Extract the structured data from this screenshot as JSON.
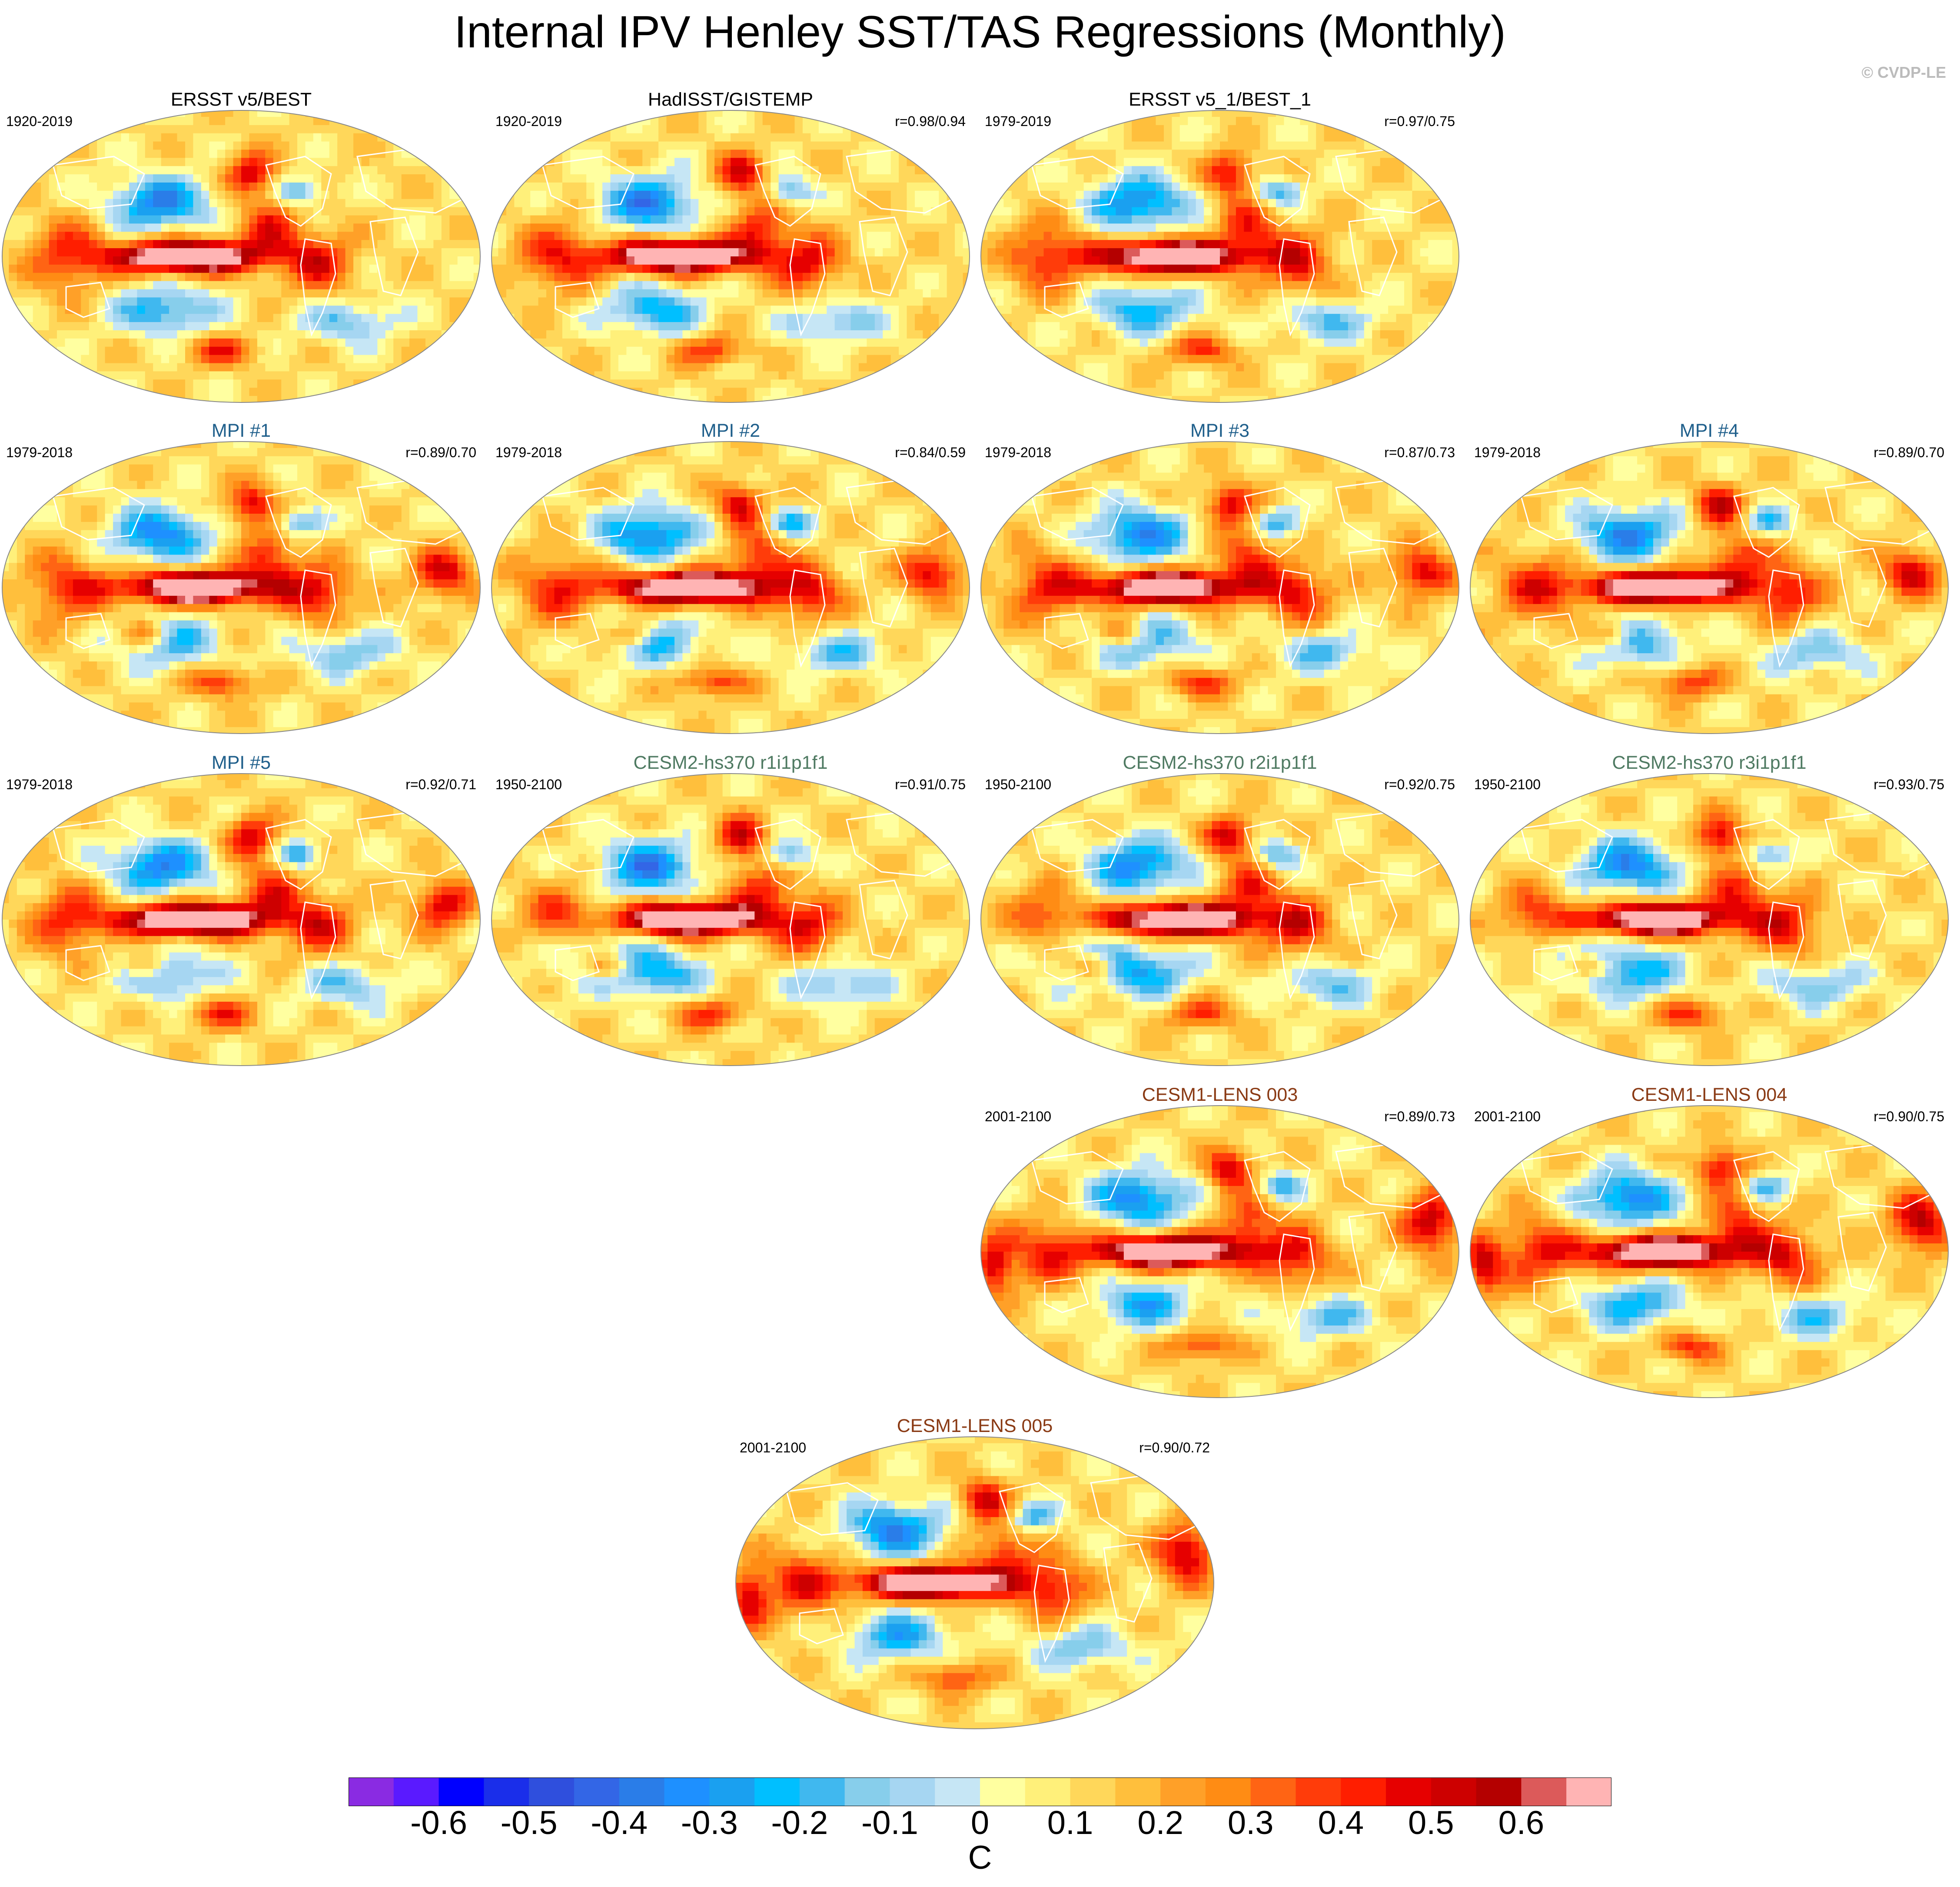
{
  "title": "Internal IPV Henley SST/TAS Regressions (Monthly)",
  "credit": "© CVDP-LE",
  "colors": {
    "obs_title": "#000000",
    "mpi_title": "#1f5f8b",
    "cesm2_title": "#4f7a62",
    "cesm1_title": "#8a3a14",
    "coast": "#ffffff",
    "land_outline": "#888888"
  },
  "chart_data": {
    "type": "heatmap",
    "projection": "Robinson global map panels",
    "variable": "SST/TAS regression",
    "units": "C",
    "colorbar": {
      "labels": [
        "-0.6",
        "-0.5",
        "-0.4",
        "-0.3",
        "-0.2",
        "-0.1",
        "0",
        "0.1",
        "0.2",
        "0.3",
        "0.4",
        "0.5",
        "0.6"
      ],
      "levels": [
        -0.65,
        -0.6,
        -0.55,
        -0.5,
        -0.45,
        -0.4,
        -0.35,
        -0.3,
        -0.25,
        -0.2,
        -0.15,
        -0.1,
        -0.05,
        0,
        0.05,
        0.1,
        0.15,
        0.2,
        0.25,
        0.3,
        0.35,
        0.4,
        0.45,
        0.5,
        0.55,
        0.6,
        0.65
      ],
      "colors": [
        "#8a2be2",
        "#5a1aff",
        "#0000ff",
        "#1a2eea",
        "#2f4fdd",
        "#3366e6",
        "#2a7de8",
        "#1e90ff",
        "#1aa0f0",
        "#00bfff",
        "#40b8ef",
        "#87ceeb",
        "#a6d6f2",
        "#c6e6f5",
        "#ffffa0",
        "#fff07a",
        "#ffd75a",
        "#ffbf3c",
        "#ffa028",
        "#ff8c14",
        "#ff6414",
        "#ff3c0a",
        "#ff1e00",
        "#e60000",
        "#cd0000",
        "#b40000",
        "#dc5a5a",
        "#ffb4b4"
      ]
    },
    "panels": [
      {
        "key": "p1",
        "title": "ERSST v5/BEST",
        "years": "1920-2019",
        "corr": "",
        "group": "obs"
      },
      {
        "key": "p2",
        "title": "HadISST/GISTEMP",
        "years": "1920-2019",
        "corr": "r=0.98/0.94",
        "group": "obs"
      },
      {
        "key": "p3",
        "title": "ERSST v5_1/BEST_1",
        "years": "1979-2019",
        "corr": "r=0.97/0.75",
        "group": "obs"
      },
      {
        "key": "p4",
        "title": "MPI #1",
        "years": "1979-2018",
        "corr": "r=0.89/0.70",
        "group": "mpi"
      },
      {
        "key": "p5",
        "title": "MPI #2",
        "years": "1979-2018",
        "corr": "r=0.84/0.59",
        "group": "mpi"
      },
      {
        "key": "p6",
        "title": "MPI #3",
        "years": "1979-2018",
        "corr": "r=0.87/0.73",
        "group": "mpi"
      },
      {
        "key": "p7",
        "title": "MPI #4",
        "years": "1979-2018",
        "corr": "r=0.89/0.70",
        "group": "mpi"
      },
      {
        "key": "p8",
        "title": "MPI #5",
        "years": "1979-2018",
        "corr": "r=0.92/0.71",
        "group": "mpi"
      },
      {
        "key": "p9",
        "title": "CESM2-hs370 r1i1p1f1",
        "years": "1950-2100",
        "corr": "r=0.91/0.75",
        "group": "cesm2"
      },
      {
        "key": "p10",
        "title": "CESM2-hs370 r2i1p1f1",
        "years": "1950-2100",
        "corr": "r=0.92/0.75",
        "group": "cesm2"
      },
      {
        "key": "p11",
        "title": "CESM2-hs370 r3i1p1f1",
        "years": "1950-2100",
        "corr": "r=0.93/0.75",
        "group": "cesm2"
      },
      {
        "key": "p12",
        "title": "CESM1-LENS 003",
        "years": "2001-2100",
        "corr": "r=0.89/0.73",
        "group": "cesm1"
      },
      {
        "key": "p13",
        "title": "CESM1-LENS 004",
        "years": "2001-2100",
        "corr": "r=0.90/0.75",
        "group": "cesm1"
      },
      {
        "key": "p14",
        "title": "CESM1-LENS 005",
        "years": "2001-2100",
        "corr": "r=0.90/0.72",
        "group": "cesm1"
      }
    ]
  }
}
